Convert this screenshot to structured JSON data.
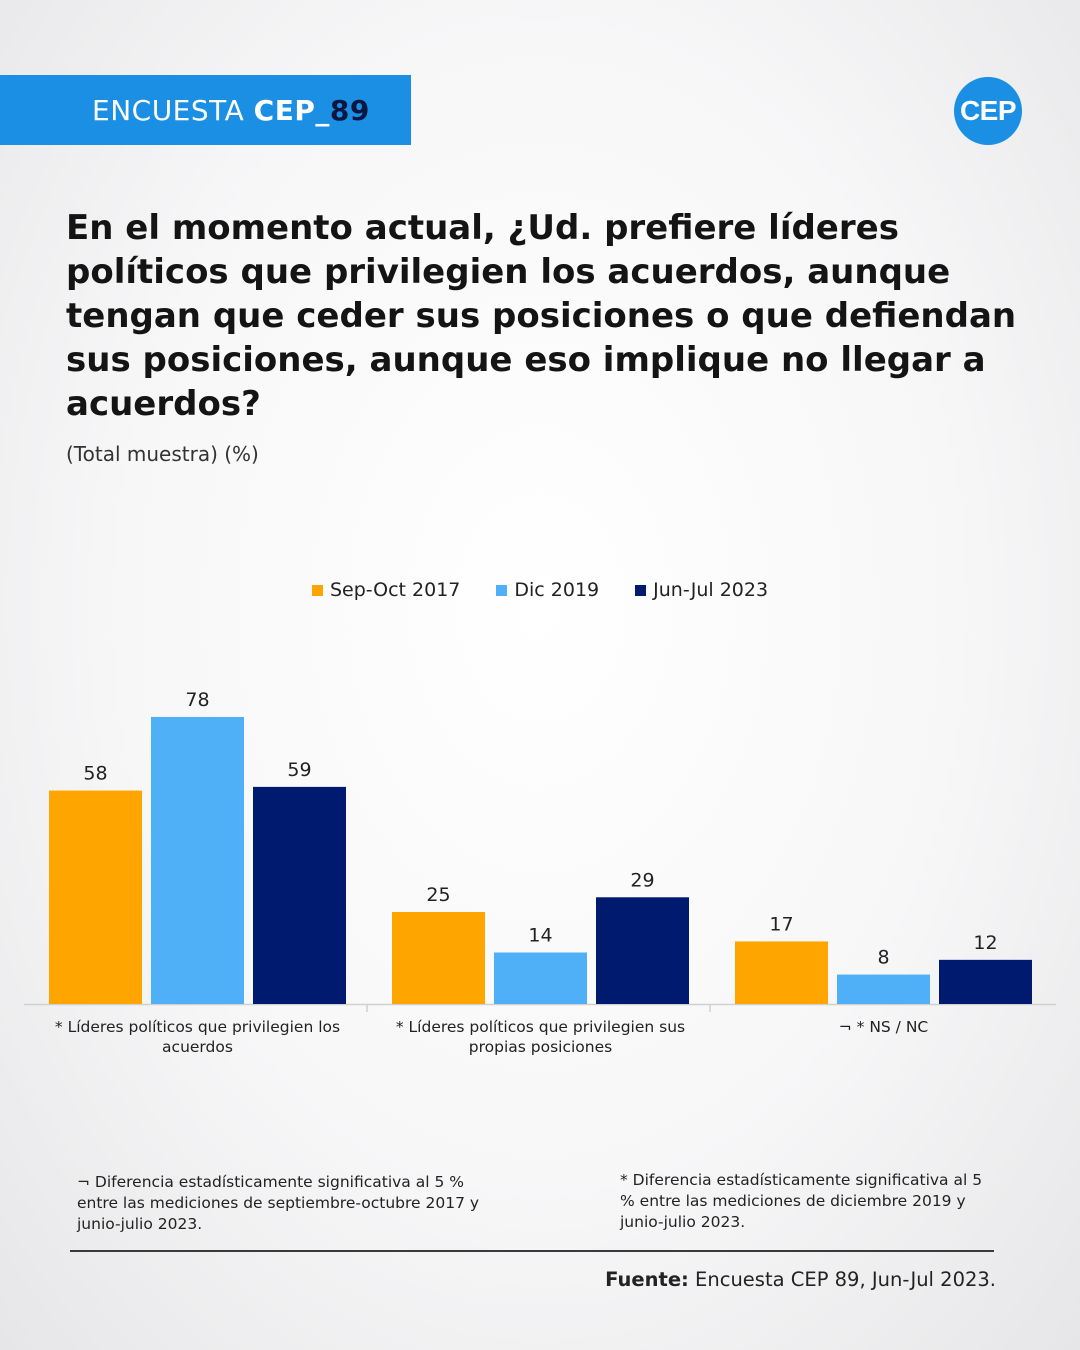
{
  "header": {
    "banner_light": "ENCUESTA ",
    "banner_bold": "CEP_",
    "banner_number": "89",
    "logo_text": "CEP",
    "brand_color": "#1a8fe3"
  },
  "question": "En el momento actual, ¿Ud. prefiere líderes políticos que privilegien los acuerdos, aunque tengan que ceder sus posiciones o que defiendan sus posiciones, aunque eso implique no llegar a acuerdos?",
  "subtitle": "(Total muestra) (%)",
  "chart_data": {
    "type": "bar",
    "categories": [
      [
        "* Líderes políticos que privilegien los",
        "acuerdos"
      ],
      [
        "* Líderes políticos que privilegien sus",
        "propias posiciones"
      ],
      [
        "¬ * NS / NC"
      ]
    ],
    "series": [
      {
        "name": "Sep-Oct 2017",
        "color": "#ffa500",
        "values": [
          58,
          25,
          17
        ]
      },
      {
        "name": "Dic 2019",
        "color": "#4fb0f7",
        "values": [
          78,
          14,
          8
        ]
      },
      {
        "name": "Jun-Jul 2023",
        "color": "#001a70",
        "values": [
          59,
          29,
          12
        ]
      }
    ],
    "ylim": [
      0,
      100
    ],
    "legend": "top-center",
    "grid": false
  },
  "notes": {
    "left": "¬ Diferencia estadísticamente significativa al 5 % entre las mediciones de septiembre-octubre 2017 y junio-julio 2023.",
    "right": "* Diferencia estadísticamente significativa al 5 % entre las mediciones de diciembre 2019 y junio-julio 2023."
  },
  "source": {
    "label": "Fuente:",
    "text": " Encuesta CEP 89, Jun-Jul 2023."
  }
}
